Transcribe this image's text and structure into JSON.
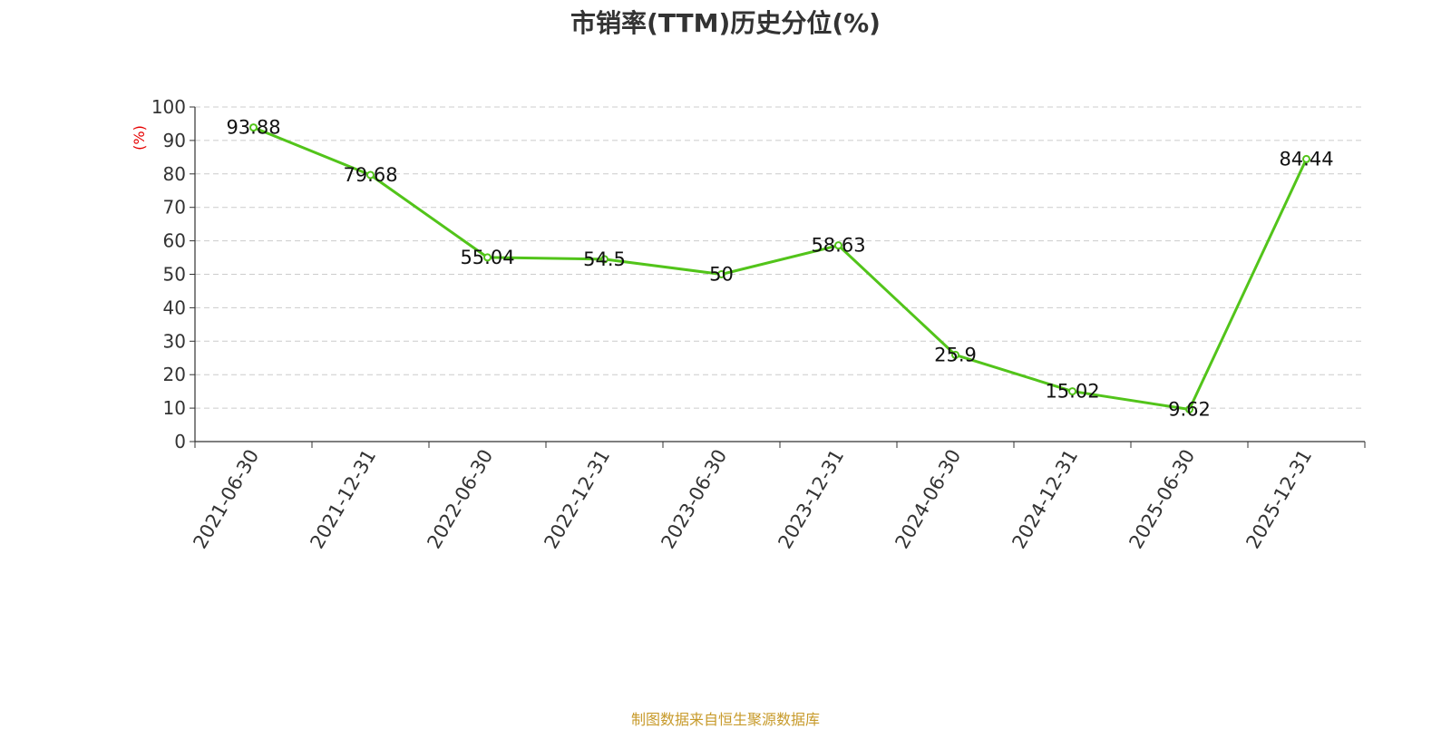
{
  "chart_data": {
    "type": "line",
    "title": "市销率(TTM)历史分位(%)",
    "ylabel": "(%)",
    "xlabel": "",
    "categories": [
      "2021-06-30",
      "2021-12-31",
      "2022-06-30",
      "2022-12-31",
      "2023-06-30",
      "2023-12-31",
      "2024-06-30",
      "2024-12-31",
      "2025-06-30",
      "2025-12-31"
    ],
    "series": [
      {
        "values": [
          93.88,
          79.68,
          55.04,
          54.5,
          50,
          58.63,
          25.9,
          15.02,
          9.62,
          84.44
        ],
        "data_labels": [
          "93.88",
          "79.68",
          "55.04",
          "54.5",
          "50",
          "58.63",
          "25.9",
          "15.02",
          "9.62",
          "84.44"
        ],
        "color": "#52c41a"
      }
    ],
    "yticks": [
      "0",
      "10",
      "20",
      "30",
      "40",
      "50",
      "60",
      "70",
      "80",
      "90",
      "100"
    ],
    "ylim": [
      0,
      100
    ],
    "grid": true,
    "colors": {
      "line": "#52c41a",
      "ylabel": "#e60000",
      "grid": "#cccccc",
      "axis": "#333333",
      "title": "#333333",
      "source": "#c79a2a"
    }
  },
  "footer": {
    "source": "制图数据来自恒生聚源数据库"
  }
}
